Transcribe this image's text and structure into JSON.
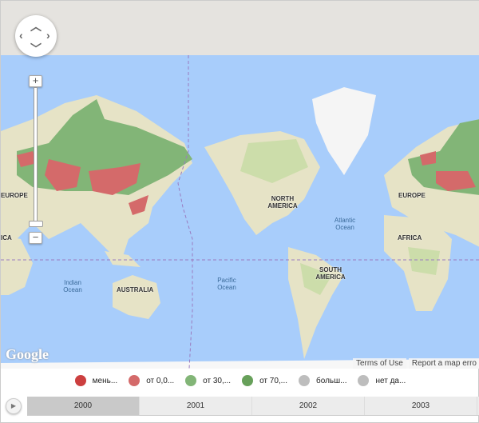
{
  "map": {
    "labels": {
      "europe_left": "EUROPE",
      "africa_left": "ICA",
      "europe": "EUROPE",
      "africa": "AFRICA",
      "north_america": "NORTH AMERICA",
      "south_america": "SOUTH AMERICA",
      "australia": "AUSTRALIA",
      "atlantic": "Atlantic Ocean",
      "pacific": "Pacific Ocean",
      "indian": "Indian Ocean"
    },
    "zoom_in": "+",
    "zoom_out": "−",
    "attribution": "Google",
    "terms": "Terms of Use",
    "report": "Report a map erro",
    "colors": {
      "ocean": "#a8cdfb",
      "land": "#e6e3c6",
      "vegetation": "#c5dba2",
      "class1": "#cc3f3f",
      "class2": "#d46a6a",
      "class3": "#7eb36e",
      "class4": "#64a055",
      "class5": "#bdbdbd",
      "class6": "#bdbdbd"
    }
  },
  "legend": [
    {
      "label": "мень...",
      "color": "#cc3f3f"
    },
    {
      "label": "от 0,0...",
      "color": "#d46a6a"
    },
    {
      "label": "от 30,...",
      "color": "#82b577"
    },
    {
      "label": "от 70,...",
      "color": "#67a05a"
    },
    {
      "label": "больш...",
      "color": "#bdbdbd"
    },
    {
      "label": "нет да...",
      "color": "#bdbdbd"
    }
  ],
  "timeline": {
    "play_icon": "play-icon",
    "years": [
      "2000",
      "2001",
      "2002",
      "2003"
    ],
    "selected": "2000"
  }
}
